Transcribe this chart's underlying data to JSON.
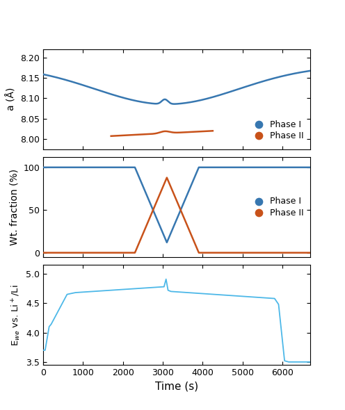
{
  "blue_color": "#3777b0",
  "orange_color": "#c8521a",
  "light_blue_color": "#4db8e8",
  "fig_bg": "#ffffff",
  "panel1_ylabel": "a (Å)",
  "panel1_ylim": [
    7.975,
    8.22
  ],
  "panel1_yticks": [
    8.0,
    8.05,
    8.1,
    8.15,
    8.2
  ],
  "panel2_ylabel": "Wt. fraction (%)",
  "panel2_ylim": [
    -5,
    112
  ],
  "panel2_yticks": [
    0,
    50,
    100
  ],
  "panel3_ylabel": "E$_{we}$ vs. Li$^+$/Li",
  "panel3_ylim": [
    3.45,
    5.15
  ],
  "panel3_yticks": [
    3.5,
    4.0,
    4.5,
    5.0
  ],
  "xlabel": "Time (s)",
  "xlim": [
    0,
    6700
  ],
  "xticks": [
    0,
    1000,
    2000,
    3000,
    4000,
    5000,
    6000
  ]
}
